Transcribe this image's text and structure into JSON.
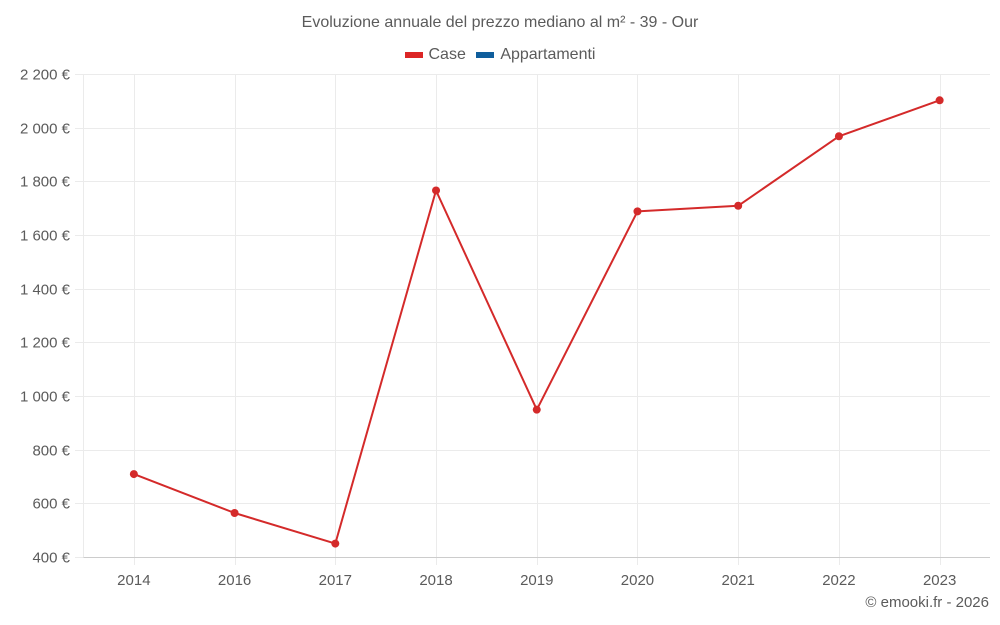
{
  "title": "Evoluzione annuale del prezzo mediano al m² - 39 - Our",
  "legend": [
    {
      "label": "Case",
      "color": "#dc2626"
    },
    {
      "label": "Appartamenti",
      "color": "#0f5e9c"
    }
  ],
  "credit": "© emooki.fr - 2026",
  "colors": {
    "series_case": "#d42a2a",
    "grid": "#ebebeb",
    "axis": "#cccccc"
  },
  "chart_data": {
    "type": "line",
    "title": "Evoluzione annuale del prezzo mediano al m² - 39 - Our",
    "xlabel": "",
    "ylabel": "",
    "categories": [
      "2014",
      "2016",
      "2017",
      "2018",
      "2019",
      "2020",
      "2021",
      "2022",
      "2023"
    ],
    "series": [
      {
        "name": "Case",
        "color": "#d42a2a",
        "values": [
          709,
          564,
          450,
          1766,
          949,
          1688,
          1709,
          1968,
          2102
        ]
      },
      {
        "name": "Appartamenti",
        "color": "#0f5e9c",
        "values": []
      }
    ],
    "ylim": [
      400,
      2200
    ],
    "yticks": [
      400,
      600,
      800,
      1000,
      1200,
      1400,
      1600,
      1800,
      2000,
      2200
    ],
    "ytick_labels": [
      "400 €",
      "600 €",
      "800 €",
      "1 000 €",
      "1 200 €",
      "1 400 €",
      "1 600 €",
      "1 800 €",
      "2 000 €",
      "2 200 €"
    ],
    "grid": true,
    "legend_position": "top"
  }
}
